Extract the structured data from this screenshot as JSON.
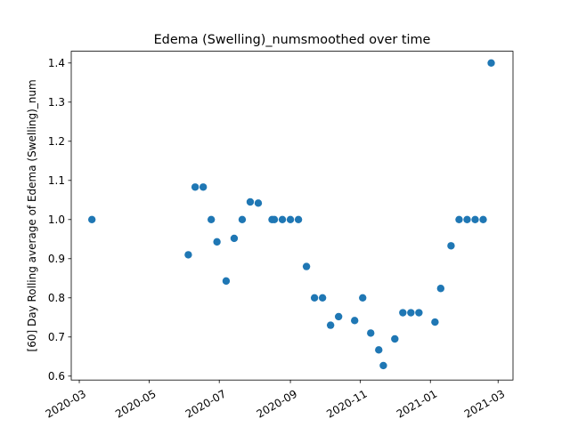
{
  "chart_data": {
    "type": "scatter",
    "title": "Edema (Swelling)_numsmoothed over time",
    "xlabel": "",
    "ylabel": "[60] Day Rolling average of Edema (Swelling)_num",
    "x_axis_type": "date",
    "xlim": [
      "2020-02-23",
      "2021-03-14"
    ],
    "ylim": [
      0.59,
      1.43
    ],
    "x_ticks": [
      "2020-03-01",
      "2020-05-01",
      "2020-07-01",
      "2020-09-01",
      "2020-11-01",
      "2021-01-01",
      "2021-03-01"
    ],
    "x_tick_labels": [
      "2020-03",
      "2020-05",
      "2020-07",
      "2020-09",
      "2020-11",
      "2021-01",
      "2021-03"
    ],
    "y_ticks": [
      0.6,
      0.7,
      0.8,
      0.9,
      1.0,
      1.1,
      1.2,
      1.3,
      1.4
    ],
    "y_tick_labels": [
      "0.6",
      "0.7",
      "0.8",
      "0.9",
      "1.0",
      "1.1",
      "1.2",
      "1.3",
      "1.4"
    ],
    "grid": false,
    "legend": "none",
    "marker_color": "#1f77b4",
    "points": [
      {
        "x": "2020-03-12",
        "y": 1.0
      },
      {
        "x": "2020-06-04",
        "y": 0.91
      },
      {
        "x": "2020-06-10",
        "y": 1.083
      },
      {
        "x": "2020-06-17",
        "y": 1.083
      },
      {
        "x": "2020-06-24",
        "y": 1.0
      },
      {
        "x": "2020-06-29",
        "y": 0.943
      },
      {
        "x": "2020-07-07",
        "y": 0.843
      },
      {
        "x": "2020-07-14",
        "y": 0.952
      },
      {
        "x": "2020-07-21",
        "y": 1.0
      },
      {
        "x": "2020-07-28",
        "y": 1.045
      },
      {
        "x": "2020-08-04",
        "y": 1.042
      },
      {
        "x": "2020-08-16",
        "y": 1.0
      },
      {
        "x": "2020-08-18",
        "y": 1.0
      },
      {
        "x": "2020-08-25",
        "y": 1.0
      },
      {
        "x": "2020-09-01",
        "y": 1.0
      },
      {
        "x": "2020-09-08",
        "y": 1.0
      },
      {
        "x": "2020-09-15",
        "y": 0.88
      },
      {
        "x": "2020-09-22",
        "y": 0.8
      },
      {
        "x": "2020-09-29",
        "y": 0.8
      },
      {
        "x": "2020-10-06",
        "y": 0.73
      },
      {
        "x": "2020-10-13",
        "y": 0.752
      },
      {
        "x": "2020-10-27",
        "y": 0.742
      },
      {
        "x": "2020-11-03",
        "y": 0.8
      },
      {
        "x": "2020-11-10",
        "y": 0.71
      },
      {
        "x": "2020-11-17",
        "y": 0.667
      },
      {
        "x": "2020-11-21",
        "y": 0.627
      },
      {
        "x": "2020-12-01",
        "y": 0.695
      },
      {
        "x": "2020-12-08",
        "y": 0.762
      },
      {
        "x": "2020-12-15",
        "y": 0.762
      },
      {
        "x": "2020-12-22",
        "y": 0.762
      },
      {
        "x": "2021-01-05",
        "y": 0.738
      },
      {
        "x": "2021-01-10",
        "y": 0.824
      },
      {
        "x": "2021-01-19",
        "y": 0.933
      },
      {
        "x": "2021-01-26",
        "y": 1.0
      },
      {
        "x": "2021-02-02",
        "y": 1.0
      },
      {
        "x": "2021-02-09",
        "y": 1.0
      },
      {
        "x": "2021-02-16",
        "y": 1.0
      },
      {
        "x": "2021-02-23",
        "y": 1.4
      }
    ]
  }
}
